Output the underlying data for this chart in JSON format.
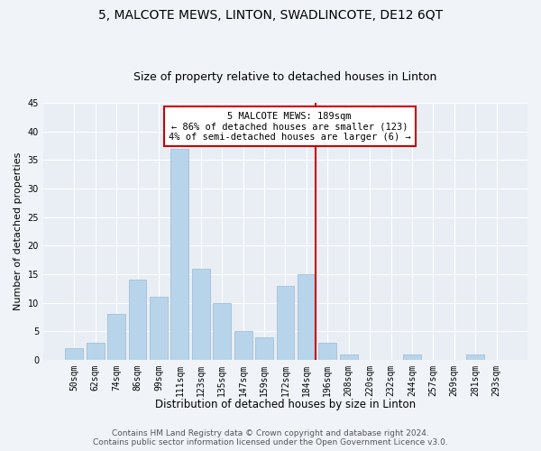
{
  "title": "5, MALCOTE MEWS, LINTON, SWADLINCOTE, DE12 6QT",
  "subtitle": "Size of property relative to detached houses in Linton",
  "xlabel": "Distribution of detached houses by size in Linton",
  "ylabel": "Number of detached properties",
  "categories": [
    "50sqm",
    "62sqm",
    "74sqm",
    "86sqm",
    "99sqm",
    "111sqm",
    "123sqm",
    "135sqm",
    "147sqm",
    "159sqm",
    "172sqm",
    "184sqm",
    "196sqm",
    "208sqm",
    "220sqm",
    "232sqm",
    "244sqm",
    "257sqm",
    "269sqm",
    "281sqm",
    "293sqm"
  ],
  "values": [
    2,
    3,
    8,
    14,
    11,
    37,
    16,
    10,
    5,
    4,
    13,
    15,
    3,
    1,
    0,
    0,
    1,
    0,
    0,
    1,
    0
  ],
  "bar_color": "#b8d4ea",
  "bar_edge_color": "#9ab8d4",
  "property_line_color": "#cc0000",
  "annotation_title": "5 MALCOTE MEWS: 189sqm",
  "annotation_line1": "← 86% of detached houses are smaller (123)",
  "annotation_line2": "4% of semi-detached houses are larger (6) →",
  "annotation_box_color": "#cc0000",
  "annotation_bg": "#ffffff",
  "ylim": [
    0,
    45
  ],
  "yticks": [
    0,
    5,
    10,
    15,
    20,
    25,
    30,
    35,
    40,
    45
  ],
  "plot_bg_color": "#e8eef4",
  "fig_bg_color": "#f0f4f8",
  "footer1": "Contains HM Land Registry data © Crown copyright and database right 2024.",
  "footer2": "Contains public sector information licensed under the Open Government Licence v3.0.",
  "grid_color": "#ffffff",
  "title_fontsize": 10,
  "subtitle_fontsize": 9,
  "xlabel_fontsize": 8.5,
  "ylabel_fontsize": 8,
  "tick_fontsize": 7,
  "annotation_fontsize": 7.5,
  "footer_fontsize": 6.5
}
